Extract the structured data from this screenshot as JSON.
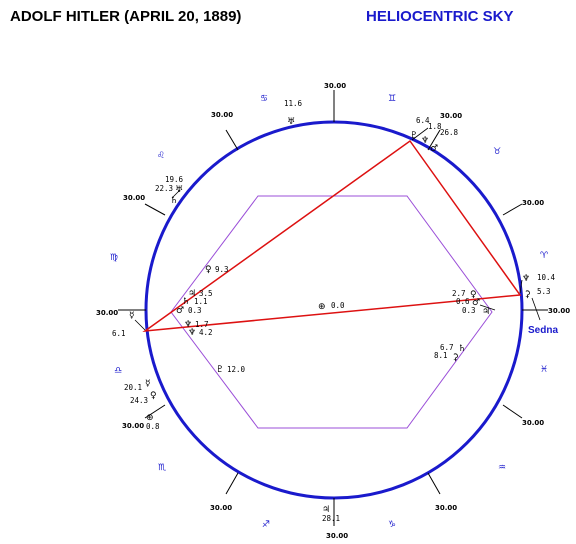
{
  "header": {
    "left_title": "ADOLF HITLER (APRIL 20, 1889)",
    "right_title": "HELIOCENTRIC SKY"
  },
  "colors": {
    "circle": "#1a1acc",
    "triangle": "#dd1111",
    "hexagon": "#9b4fd8",
    "text": "#000000"
  },
  "ring_ticks": [
    "30.00",
    "30.00",
    "30.00",
    "30.00",
    "30.00",
    "30.00",
    "30.00",
    "30.00",
    "30.00",
    "30.00",
    "30.00",
    "30.00"
  ],
  "zodiac_signs": [
    "♊",
    "♉",
    "♈",
    "♓",
    "♒",
    "♑",
    "♐",
    "♏",
    "♎",
    "♍",
    "♌",
    "♋"
  ],
  "center": {
    "glyph": "⊕",
    "value": "0.0"
  },
  "planets": [
    {
      "glyph": "♅",
      "value": "11.6"
    },
    {
      "glyph": "♇",
      "value": "6.4"
    },
    {
      "glyph": "♆",
      "value": "1.8"
    },
    {
      "glyph": "♂",
      "value": "26.8"
    },
    {
      "glyph": "♆",
      "value": "10.4"
    },
    {
      "glyph": "⚳",
      "value": "5.3"
    },
    {
      "glyph": "♀",
      "value": "2.7"
    },
    {
      "glyph": "♂",
      "value": "0.6"
    },
    {
      "glyph": "♃",
      "value": "0.3"
    },
    {
      "glyph": "♄",
      "value": "6.7"
    },
    {
      "glyph": "⚳",
      "value": "8.1"
    },
    {
      "glyph": "♄",
      "value": "19.6"
    },
    {
      "glyph": "♅",
      "value": "22.3"
    },
    {
      "glyph": "♀",
      "value": "9.3"
    },
    {
      "glyph": "♃",
      "value": "3.5"
    },
    {
      "glyph": "♄",
      "value": "1.1"
    },
    {
      "glyph": "♂",
      "value": "0.3"
    },
    {
      "glyph": "♆",
      "value": "1.7"
    },
    {
      "glyph": "♆",
      "value": "4.2"
    },
    {
      "glyph": "♇",
      "value": "12.0"
    },
    {
      "glyph": "☿",
      "value": "6.1"
    },
    {
      "glyph": "☿",
      "value": "20.1"
    },
    {
      "glyph": "♀",
      "value": "24.3"
    },
    {
      "glyph": "⊕",
      "value": "0.8"
    },
    {
      "glyph": "♃",
      "value": "28.1"
    }
  ],
  "sedna_label": "Sedna"
}
